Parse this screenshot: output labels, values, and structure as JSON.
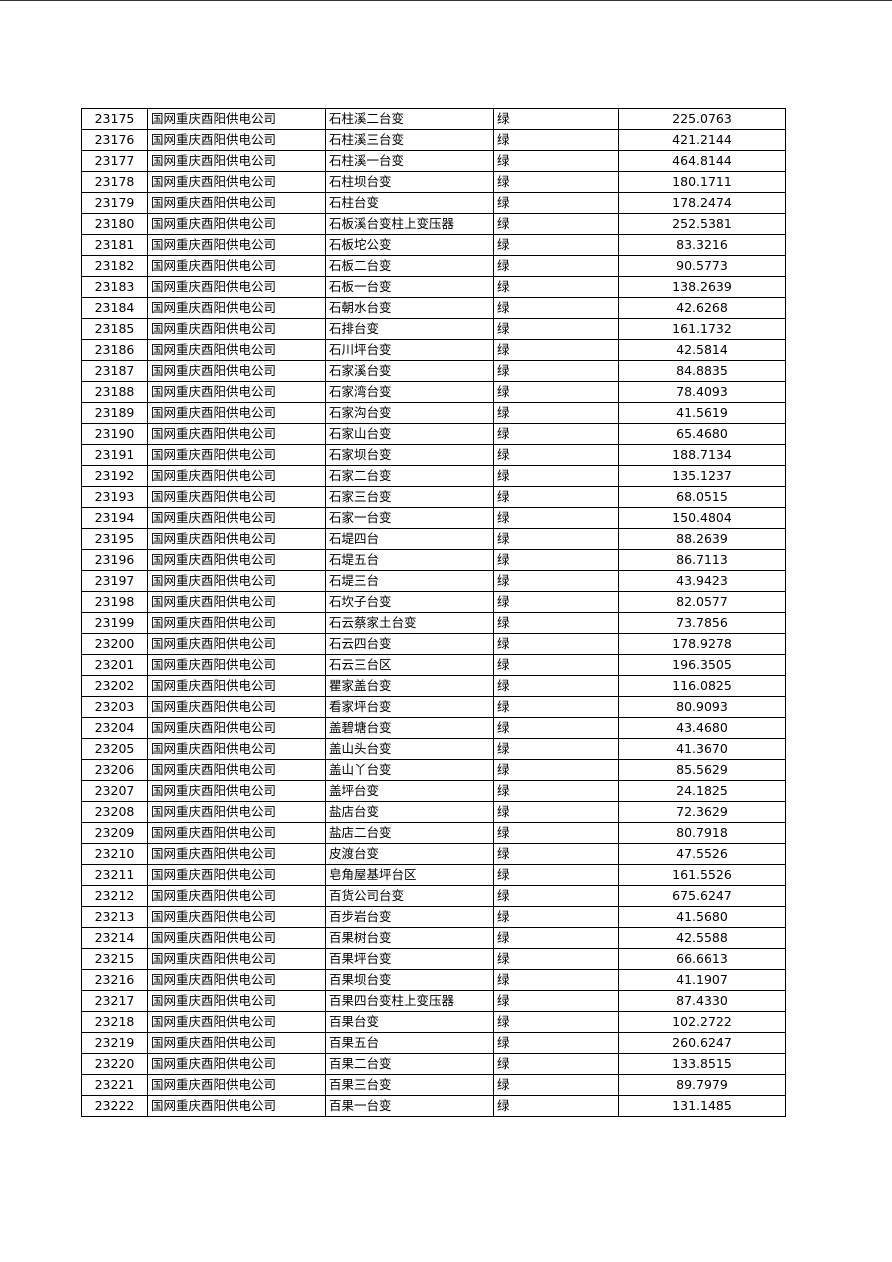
{
  "table": {
    "rows": [
      [
        "23175",
        "国网重庆酉阳供电公司",
        "石柱溪二台变",
        "绿",
        "225.0763"
      ],
      [
        "23176",
        "国网重庆酉阳供电公司",
        "石柱溪三台变",
        "绿",
        "421.2144"
      ],
      [
        "23177",
        "国网重庆酉阳供电公司",
        "石柱溪一台变",
        "绿",
        "464.8144"
      ],
      [
        "23178",
        "国网重庆酉阳供电公司",
        "石柱坝台变",
        "绿",
        "180.1711"
      ],
      [
        "23179",
        "国网重庆酉阳供电公司",
        "石柱台变",
        "绿",
        "178.2474"
      ],
      [
        "23180",
        "国网重庆酉阳供电公司",
        "石板溪台变柱上变压器",
        "绿",
        "252.5381"
      ],
      [
        "23181",
        "国网重庆酉阳供电公司",
        "石板坨公变",
        "绿",
        "83.3216"
      ],
      [
        "23182",
        "国网重庆酉阳供电公司",
        "石板二台变",
        "绿",
        "90.5773"
      ],
      [
        "23183",
        "国网重庆酉阳供电公司",
        "石板一台变",
        "绿",
        "138.2639"
      ],
      [
        "23184",
        "国网重庆酉阳供电公司",
        "石朝水台变",
        "绿",
        "42.6268"
      ],
      [
        "23185",
        "国网重庆酉阳供电公司",
        "石排台变",
        "绿",
        "161.1732"
      ],
      [
        "23186",
        "国网重庆酉阳供电公司",
        "石川坪台变",
        "绿",
        "42.5814"
      ],
      [
        "23187",
        "国网重庆酉阳供电公司",
        "石家溪台变",
        "绿",
        "84.8835"
      ],
      [
        "23188",
        "国网重庆酉阳供电公司",
        "石家湾台变",
        "绿",
        "78.4093"
      ],
      [
        "23189",
        "国网重庆酉阳供电公司",
        "石家沟台变",
        "绿",
        "41.5619"
      ],
      [
        "23190",
        "国网重庆酉阳供电公司",
        "石家山台变",
        "绿",
        "65.4680"
      ],
      [
        "23191",
        "国网重庆酉阳供电公司",
        "石家坝台变",
        "绿",
        "188.7134"
      ],
      [
        "23192",
        "国网重庆酉阳供电公司",
        "石家二台变",
        "绿",
        "135.1237"
      ],
      [
        "23193",
        "国网重庆酉阳供电公司",
        "石家三台变",
        "绿",
        "68.0515"
      ],
      [
        "23194",
        "国网重庆酉阳供电公司",
        "石家一台变",
        "绿",
        "150.4804"
      ],
      [
        "23195",
        "国网重庆酉阳供电公司",
        "石堤四台",
        "绿",
        "88.2639"
      ],
      [
        "23196",
        "国网重庆酉阳供电公司",
        "石堤五台",
        "绿",
        "86.7113"
      ],
      [
        "23197",
        "国网重庆酉阳供电公司",
        "石堤三台",
        "绿",
        "43.9423"
      ],
      [
        "23198",
        "国网重庆酉阳供电公司",
        "石坎子台变",
        "绿",
        "82.0577"
      ],
      [
        "23199",
        "国网重庆酉阳供电公司",
        "石云蔡家土台变",
        "绿",
        "73.7856"
      ],
      [
        "23200",
        "国网重庆酉阳供电公司",
        "石云四台变",
        "绿",
        "178.9278"
      ],
      [
        "23201",
        "国网重庆酉阳供电公司",
        "石云三台区",
        "绿",
        "196.3505"
      ],
      [
        "23202",
        "国网重庆酉阳供电公司",
        "瞿家盖台变",
        "绿",
        "116.0825"
      ],
      [
        "23203",
        "国网重庆酉阳供电公司",
        "看家坪台变",
        "绿",
        "80.9093"
      ],
      [
        "23204",
        "国网重庆酉阳供电公司",
        "盖碧塘台变",
        "绿",
        "43.4680"
      ],
      [
        "23205",
        "国网重庆酉阳供电公司",
        "盖山头台变",
        "绿",
        "41.3670"
      ],
      [
        "23206",
        "国网重庆酉阳供电公司",
        "盖山丫台变",
        "绿",
        "85.5629"
      ],
      [
        "23207",
        "国网重庆酉阳供电公司",
        "盖坪台变",
        "绿",
        "24.1825"
      ],
      [
        "23208",
        "国网重庆酉阳供电公司",
        "盐店台变",
        "绿",
        "72.3629"
      ],
      [
        "23209",
        "国网重庆酉阳供电公司",
        "盐店二台变",
        "绿",
        "80.7918"
      ],
      [
        "23210",
        "国网重庆酉阳供电公司",
        "皮渡台变",
        "绿",
        "47.5526"
      ],
      [
        "23211",
        "国网重庆酉阳供电公司",
        "皂角屋基坪台区",
        "绿",
        "161.5526"
      ],
      [
        "23212",
        "国网重庆酉阳供电公司",
        "百货公司台变",
        "绿",
        "675.6247"
      ],
      [
        "23213",
        "国网重庆酉阳供电公司",
        "百步岩台变",
        "绿",
        "41.5680"
      ],
      [
        "23214",
        "国网重庆酉阳供电公司",
        "百果树台变",
        "绿",
        "42.5588"
      ],
      [
        "23215",
        "国网重庆酉阳供电公司",
        "百果坪台变",
        "绿",
        "66.6613"
      ],
      [
        "23216",
        "国网重庆酉阳供电公司",
        "百果坝台变",
        "绿",
        "41.1907"
      ],
      [
        "23217",
        "国网重庆酉阳供电公司",
        "百果四台变柱上变压器",
        "绿",
        "87.4330"
      ],
      [
        "23218",
        "国网重庆酉阳供电公司",
        "百果台变",
        "绿",
        "102.2722"
      ],
      [
        "23219",
        "国网重庆酉阳供电公司",
        "百果五台",
        "绿",
        "260.6247"
      ],
      [
        "23220",
        "国网重庆酉阳供电公司",
        "百果二台变",
        "绿",
        "133.8515"
      ],
      [
        "23221",
        "国网重庆酉阳供电公司",
        "百果三台变",
        "绿",
        "89.7979"
      ],
      [
        "23222",
        "国网重庆酉阳供电公司",
        "百果一台变",
        "绿",
        "131.1485"
      ]
    ]
  }
}
